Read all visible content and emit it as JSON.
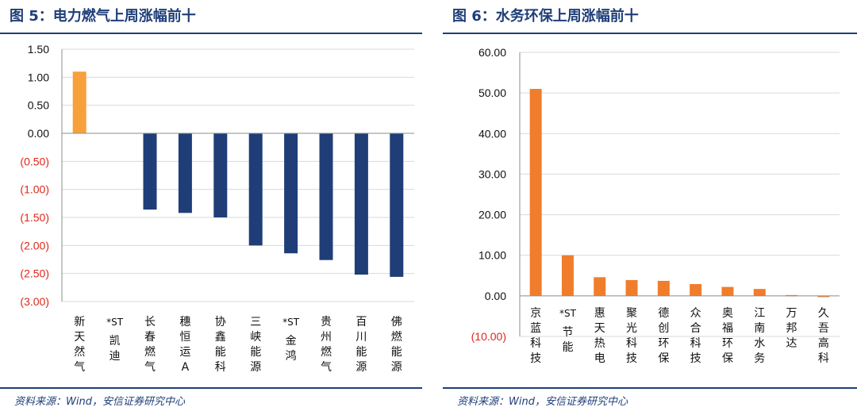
{
  "source": "资料来源：Wind，安信证券研究中心",
  "colors": {
    "navy": "#1f3e78",
    "orange": "#f07d2b",
    "orange_left": "#f7a03c",
    "negative_tick": "#e0271a"
  },
  "chart_data": [
    {
      "type": "bar",
      "title": "图 5：电力燃气上周涨幅前十",
      "categories": [
        "新天然气",
        "*ST凯迪",
        "长春燃气",
        "穗恒运A",
        "协鑫能科",
        "三峡能源",
        "*ST金鸿",
        "贵州燃气",
        "百川能源",
        "佛燃能源"
      ],
      "values": [
        1.1,
        0.0,
        -1.36,
        -1.42,
        -1.5,
        -2.0,
        -2.14,
        -2.26,
        -2.52,
        -2.56
      ],
      "bar_colors": [
        "#f7a03c",
        "#1f3e78",
        "#1f3e78",
        "#1f3e78",
        "#1f3e78",
        "#1f3e78",
        "#1f3e78",
        "#1f3e78",
        "#1f3e78",
        "#1f3e78"
      ],
      "ylim": [
        -3.0,
        1.5
      ],
      "yticks": [
        "1.50",
        "1.00",
        "0.50",
        "0.00",
        "(0.50)",
        "(1.00)",
        "(1.50)",
        "(2.00)",
        "(2.50)",
        "(3.00)"
      ],
      "ytick_values": [
        1.5,
        1.0,
        0.5,
        0.0,
        -0.5,
        -1.0,
        -1.5,
        -2.0,
        -2.5,
        -3.0
      ],
      "grid": true,
      "legend": "none"
    },
    {
      "type": "bar",
      "title": "图 6：水务环保上周涨幅前十",
      "categories": [
        "京蓝科技",
        "*ST节能",
        "惠天热电",
        "聚光科技",
        "德创环保",
        "众合科技",
        "奥福环保",
        "江南水务",
        "万邦达",
        "久吾高科"
      ],
      "values": [
        51.0,
        10.0,
        4.6,
        3.9,
        3.7,
        2.9,
        2.2,
        1.7,
        0.2,
        -0.3
      ],
      "bar_colors": [
        "#f07d2b",
        "#f07d2b",
        "#f07d2b",
        "#f07d2b",
        "#f07d2b",
        "#f07d2b",
        "#f07d2b",
        "#f07d2b",
        "#f07d2b",
        "#f07d2b"
      ],
      "ylim": [
        -10,
        60
      ],
      "yticks": [
        "60.00",
        "50.00",
        "40.00",
        "30.00",
        "20.00",
        "10.00",
        "0.00",
        "(10.00)"
      ],
      "ytick_values": [
        60,
        50,
        40,
        30,
        20,
        10,
        0,
        -10
      ],
      "grid": true,
      "legend": "none"
    }
  ]
}
